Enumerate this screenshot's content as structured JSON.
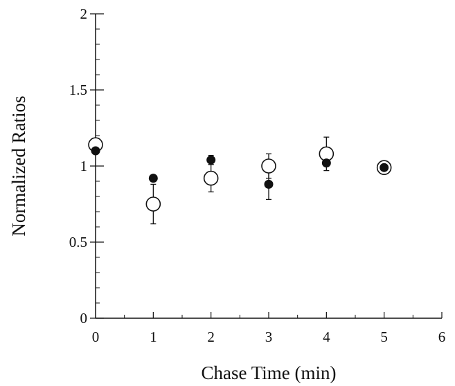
{
  "chart_data": {
    "type": "scatter",
    "title": "",
    "xlabel": "Chase Time (min)",
    "ylabel": "Normalized Ratios",
    "xlim": [
      0,
      6
    ],
    "ylim": [
      0,
      2
    ],
    "x_ticks": [
      "0",
      "1",
      "2",
      "3",
      "4",
      "5",
      "6"
    ],
    "y_ticks": [
      "0",
      "0.5",
      "1",
      "1.5",
      "2"
    ],
    "grid": false,
    "legend": "none",
    "series": [
      {
        "marker": "filled-circle",
        "points": [
          {
            "x": 0,
            "y": 1.1
          },
          {
            "x": 1,
            "y": 0.92
          },
          {
            "x": 2,
            "y": 1.04,
            "err": 0.03
          },
          {
            "x": 3,
            "y": 0.88,
            "err": 0.1
          },
          {
            "x": 4,
            "y": 1.02
          },
          {
            "x": 5,
            "y": 0.99
          }
        ]
      },
      {
        "marker": "open-circle",
        "points": [
          {
            "x": 0,
            "y": 1.14
          },
          {
            "x": 1,
            "y": 0.75,
            "err": 0.13
          },
          {
            "x": 2,
            "y": 0.92,
            "err": 0.09
          },
          {
            "x": 3,
            "y": 1.0,
            "err": 0.08
          },
          {
            "x": 4,
            "y": 1.08,
            "err": 0.11
          },
          {
            "x": 5,
            "y": 0.99
          }
        ]
      }
    ]
  }
}
